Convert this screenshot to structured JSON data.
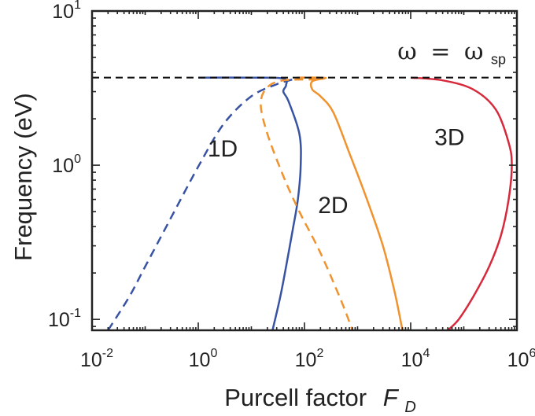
{
  "chart_data": {
    "type": "line",
    "title": "",
    "xlabel": "Purcell factor",
    "xlabel_symbol": "F",
    "xlabel_subscript": "D",
    "ylabel": "Frequency (eV)",
    "xscale": "log",
    "yscale": "log",
    "xlim": [
      0.01,
      1000000
    ],
    "ylim": [
      0.085,
      10
    ],
    "x_ticks": [
      {
        "base": "10",
        "exp": "-2",
        "value": 0.01
      },
      {
        "base": "10",
        "exp": "0",
        "value": 1
      },
      {
        "base": "10",
        "exp": "2",
        "value": 100
      },
      {
        "base": "10",
        "exp": "4",
        "value": 10000
      },
      {
        "base": "10",
        "exp": "6",
        "value": 1000000
      }
    ],
    "y_ticks": [
      {
        "base": "10",
        "exp": "-1",
        "value": 0.1
      },
      {
        "base": "10",
        "exp": "0",
        "value": 1
      },
      {
        "base": "10",
        "exp": "1",
        "value": 10
      }
    ],
    "grid": false,
    "annotation": {
      "lhs": "ω",
      "equals": "=",
      "rhs": "ω",
      "rhs_subscript": "sp",
      "y": 3.7
    },
    "series": [
      {
        "name": "1D",
        "color": "#3953a4",
        "dash": "dashed",
        "x": [
          0.02,
          0.05,
          0.1,
          0.3,
          1,
          3,
          10,
          30,
          60,
          70
        ],
        "y": [
          0.085,
          0.14,
          0.22,
          0.45,
          0.98,
          1.85,
          2.8,
          3.35,
          3.6,
          3.7
        ]
      },
      {
        "name": "1D",
        "color": "#3953a4",
        "dash": "solid",
        "x": [
          1,
          10,
          40,
          45,
          40,
          50,
          80,
          85,
          75,
          60,
          45,
          35,
          25
        ],
        "y": [
          3.7,
          3.7,
          3.65,
          3.3,
          3.0,
          2.6,
          1.6,
          1.0,
          0.6,
          0.38,
          0.22,
          0.14,
          0.085
        ]
      },
      {
        "name": "2D",
        "color": "#f0932e",
        "dash": "dashed",
        "x": [
          70,
          130,
          200,
          160,
          40,
          20,
          15,
          20,
          40,
          80,
          200,
          500,
          800
        ],
        "y": [
          3.7,
          3.7,
          3.65,
          3.6,
          3.55,
          3.2,
          2.5,
          1.6,
          0.85,
          0.5,
          0.27,
          0.13,
          0.085
        ]
      },
      {
        "name": "2D",
        "color": "#f0932e",
        "dash": "solid",
        "x": [
          120,
          250,
          140,
          140,
          200,
          350,
          700,
          1500,
          3000,
          5000,
          7000
        ],
        "y": [
          3.7,
          3.68,
          3.5,
          3.1,
          2.8,
          2.2,
          1.2,
          0.6,
          0.3,
          0.15,
          0.085
        ]
      },
      {
        "name": "3D",
        "color": "#d62a3c",
        "dash": "solid",
        "x": [
          10000,
          40000,
          150000,
          400000,
          700000,
          800000,
          700000,
          500000,
          300000,
          150000,
          80000,
          50000
        ],
        "y": [
          3.7,
          3.55,
          3.1,
          2.3,
          1.4,
          1.0,
          0.6,
          0.35,
          0.22,
          0.14,
          0.1,
          0.085
        ]
      }
    ],
    "series_labels": [
      {
        "text": "1D",
        "x": 1.5,
        "y": 1.14
      },
      {
        "text": "2D",
        "x": 180,
        "y": 0.49
      },
      {
        "text": "3D",
        "x": 28000,
        "y": 1.35
      }
    ]
  }
}
